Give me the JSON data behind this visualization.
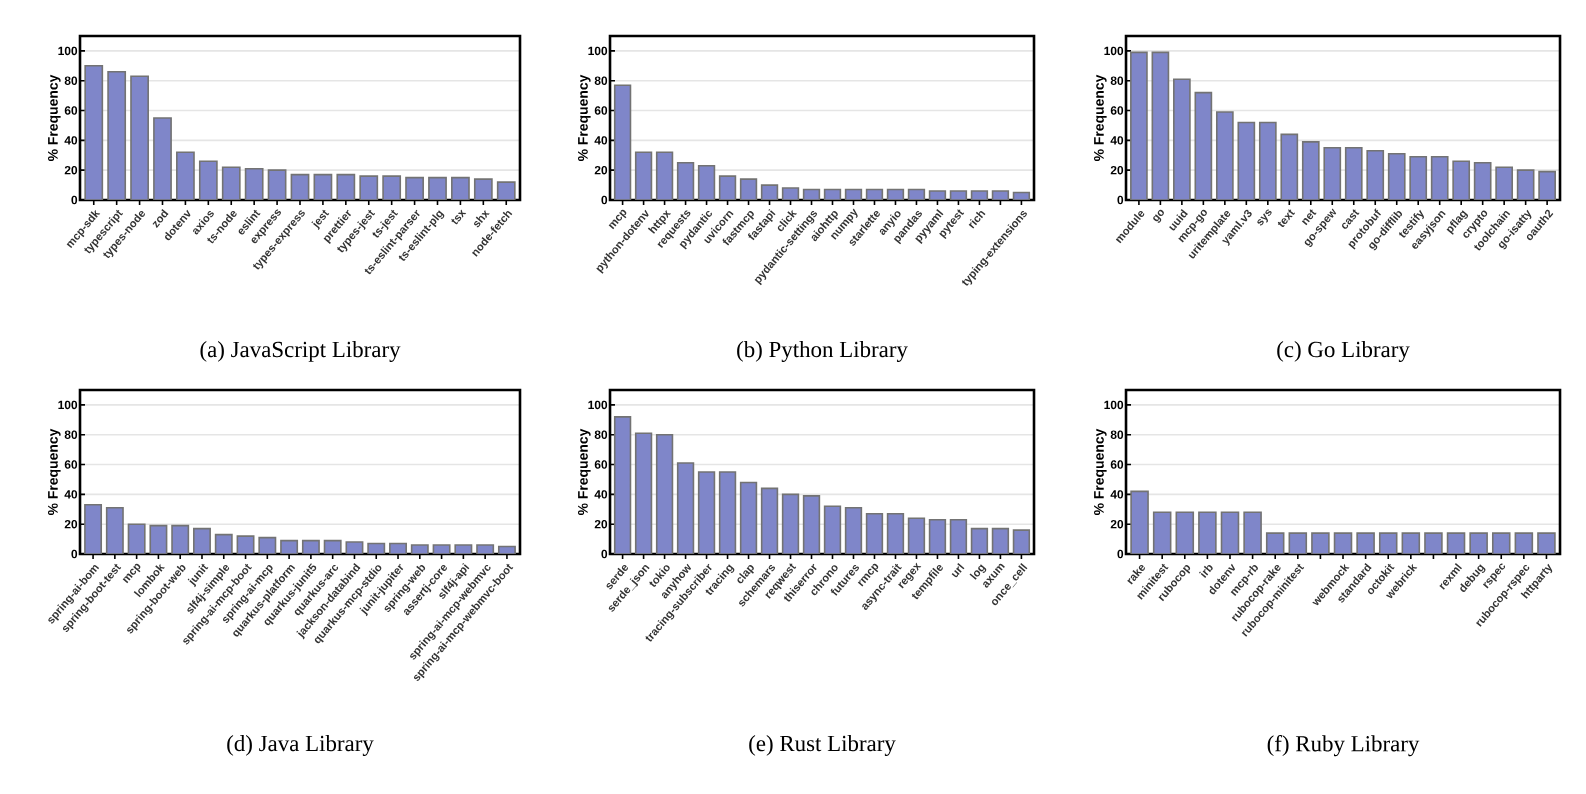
{
  "chart_data": [
    {
      "type": "bar",
      "title": "(a) JavaScript Library",
      "ylabel": "% Frequency",
      "categories": [
        "mcp-sdk",
        "typescript",
        "types-node",
        "zod",
        "dotenv",
        "axios",
        "ts-node",
        "eslint",
        "express",
        "types-express",
        "jest",
        "prettier",
        "types-jest",
        "ts-jest",
        "ts-eslint-parser",
        "ts-eslint-plg",
        "tsx",
        "shx",
        "node-fetch"
      ],
      "values": [
        90,
        86,
        83,
        55,
        32,
        26,
        22,
        21,
        20,
        17,
        17,
        17,
        16,
        16,
        15,
        15,
        15,
        14,
        12
      ],
      "color": "#7f86c9",
      "ylim": [
        0,
        110
      ],
      "yticks": [
        0,
        20,
        40,
        60,
        80,
        100
      ],
      "grid": "y"
    },
    {
      "type": "bar",
      "title": "(b) Python Library",
      "ylabel": "% Frequency",
      "categories": [
        "mcp",
        "python-dotenv",
        "httpx",
        "requests",
        "pydantic",
        "uvicorn",
        "fastmcp",
        "fastapi",
        "click",
        "pydantic-settings",
        "aiohttp",
        "numpy",
        "starlette",
        "anyio",
        "pandas",
        "pyyaml",
        "pytest",
        "rich",
        null,
        "typing-extensions"
      ],
      "values": [
        77,
        32,
        32,
        25,
        23,
        16,
        14,
        10,
        8,
        7,
        7,
        7,
        7,
        7,
        7,
        6,
        6,
        6,
        6,
        5
      ],
      "color": "#7f86c9",
      "ylim": [
        0,
        110
      ],
      "yticks": [
        0,
        20,
        40,
        60,
        80,
        100
      ],
      "grid": "y"
    },
    {
      "type": "bar",
      "title": "(c) Go Library",
      "ylabel": "% Frequency",
      "categories": [
        "module",
        "go",
        "uuid",
        "mcp-go",
        "uritemplate",
        "yaml.v3",
        "sys",
        "text",
        "net",
        "go-spew",
        "cast",
        "protobuf",
        "go-difflib",
        "testify",
        "easyjson",
        "pflag",
        "crypto",
        "toolchain",
        "go-isatty",
        "oauth2"
      ],
      "values": [
        99,
        99,
        81,
        72,
        59,
        52,
        52,
        44,
        39,
        35,
        35,
        33,
        31,
        29,
        29,
        26,
        25,
        22,
        20,
        19
      ],
      "color": "#7f86c9",
      "ylim": [
        0,
        110
      ],
      "yticks": [
        0,
        20,
        40,
        60,
        80,
        100
      ],
      "grid": "y"
    },
    {
      "type": "bar",
      "title": "(d) Java Library",
      "ylabel": "% Frequency",
      "categories": [
        "spring-ai-bom",
        "spring-boot-test",
        "mcp",
        "lombok",
        "spring-boot-web",
        "junit",
        "slf4j-simple",
        "spring-ai-mcp-boot",
        "spring-ai-mcp",
        "quarkus-platform",
        "quarkus-junit5",
        "quarkus-arc",
        "jackson-databind",
        "quarkus-mcp-stdio",
        "junit-jupiter",
        "spring-web",
        "assertj-core",
        "slf4j-api",
        "spring-ai-mcp-webmvc",
        "spring-ai-mcp-webmvc-boot"
      ],
      "values": [
        33,
        31,
        20,
        19,
        19,
        17,
        13,
        12,
        11,
        9,
        9,
        9,
        8,
        7,
        7,
        6,
        6,
        6,
        6,
        5
      ],
      "color": "#7f86c9",
      "ylim": [
        0,
        110
      ],
      "yticks": [
        0,
        20,
        40,
        60,
        80,
        100
      ],
      "grid": "y"
    },
    {
      "type": "bar",
      "title": "(e) Rust Library",
      "ylabel": "% Frequency",
      "categories": [
        "serde",
        "serde_json",
        "tokio",
        "anyhow",
        "tracing-subscriber",
        "tracing",
        "clap",
        "schemars",
        "reqwest",
        "thiserror",
        "chrono",
        "futures",
        "rmcp",
        "async-trait",
        "regex",
        "tempfile",
        "url",
        "log",
        "axum",
        "once_cell"
      ],
      "values": [
        92,
        81,
        80,
        61,
        55,
        55,
        48,
        44,
        40,
        39,
        32,
        31,
        27,
        27,
        24,
        23,
        23,
        17,
        17,
        16
      ],
      "color": "#7f86c9",
      "ylim": [
        0,
        110
      ],
      "yticks": [
        0,
        20,
        40,
        60,
        80,
        100
      ],
      "grid": "y"
    },
    {
      "type": "bar",
      "title": "(f) Ruby Library",
      "ylabel": "% Frequency",
      "categories": [
        "rake",
        "minitest",
        "rubocop",
        "irb",
        "dotenv",
        "mcp-rb",
        "rubocop-rake",
        "rubocop-minitest",
        null,
        "webmock",
        "standard",
        "octokit",
        "webrick",
        null,
        "rexml",
        "debug",
        "rspec",
        "rubocop-rspec",
        "httparty"
      ],
      "values": [
        42,
        28,
        28,
        28,
        28,
        28,
        14,
        14,
        14,
        14,
        14,
        14,
        14,
        14,
        14,
        14,
        14,
        14,
        14
      ],
      "color": "#7f86c9",
      "ylim": [
        0,
        110
      ],
      "yticks": [
        0,
        20,
        40,
        60,
        80,
        100
      ],
      "grid": "y"
    }
  ]
}
